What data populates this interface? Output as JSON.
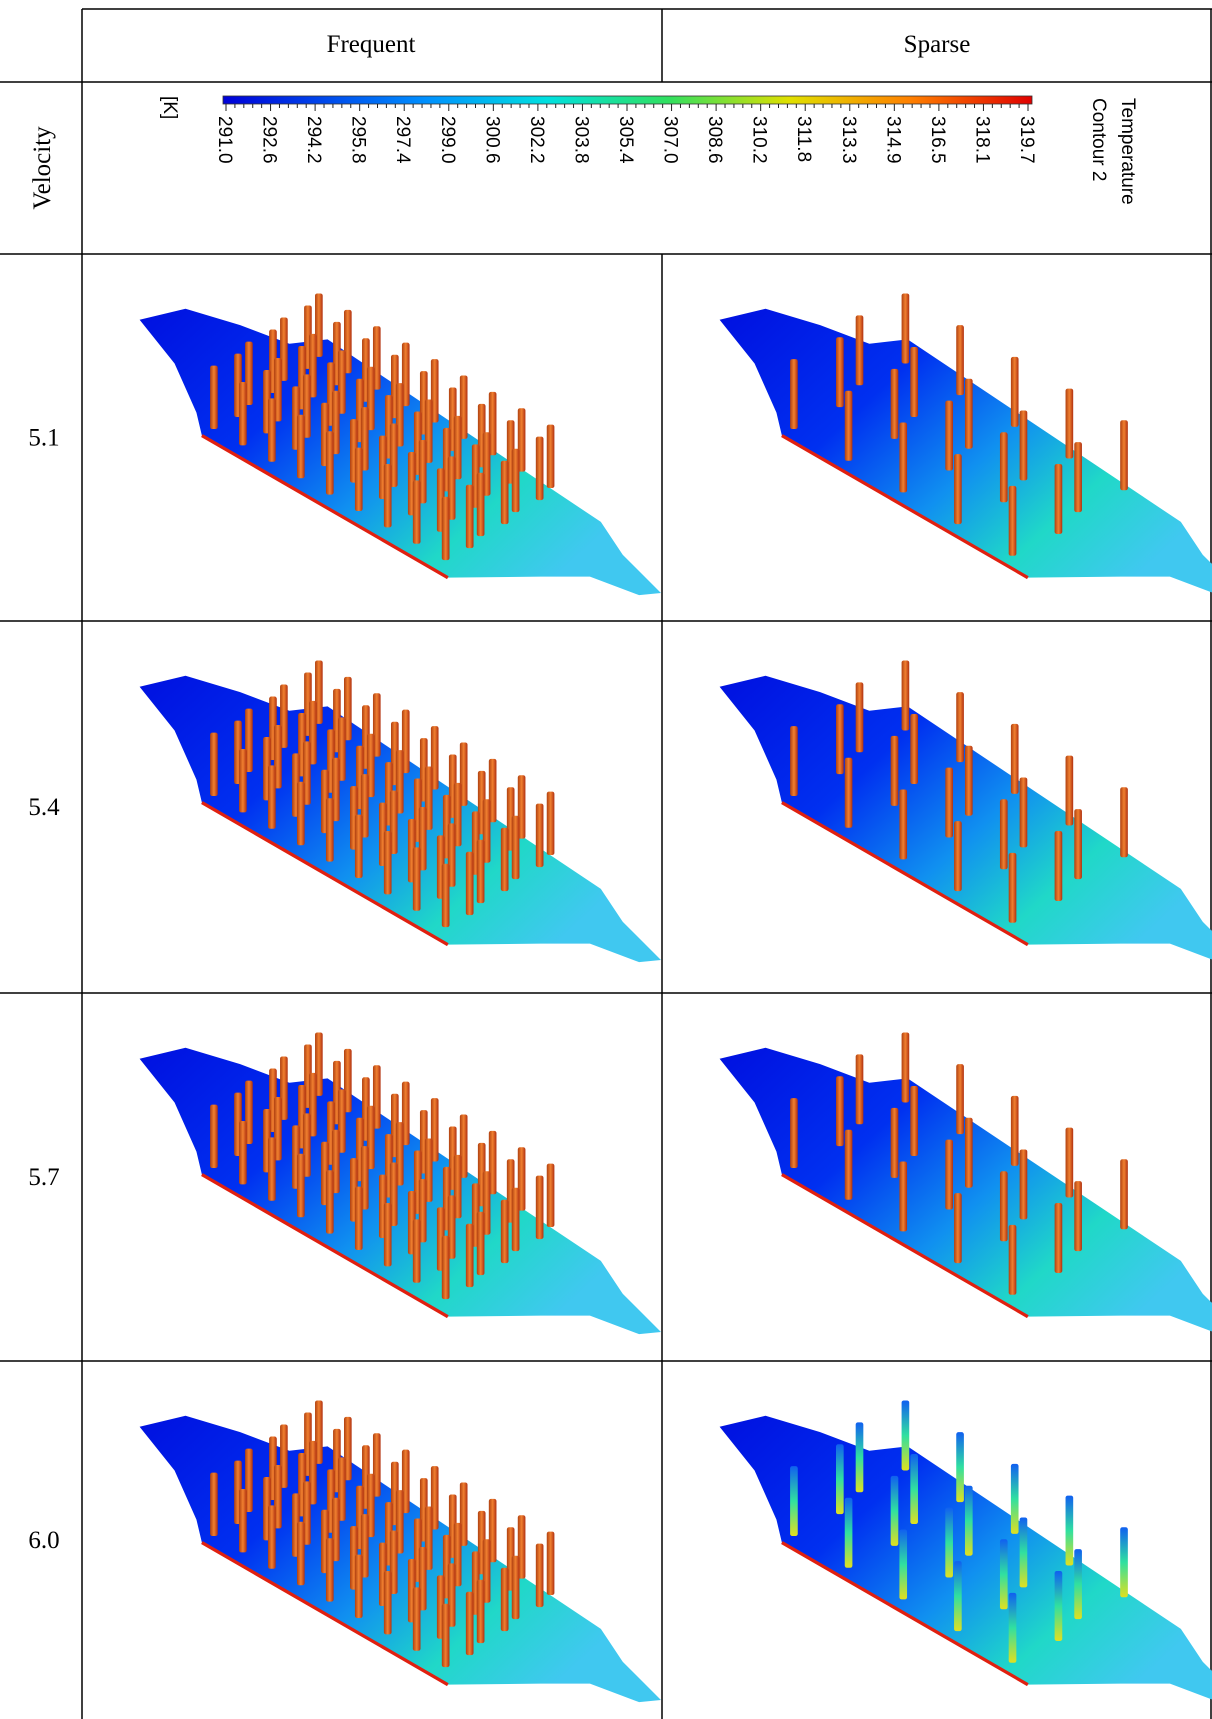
{
  "header": {
    "columns": [
      "Frequent",
      "Sparse"
    ]
  },
  "legend": {
    "row_label": "Velocity",
    "title_lines": [
      "Temperature",
      "Contour 2"
    ],
    "unit": "[K]",
    "ticks": [
      "291.0",
      "292.6",
      "294.2",
      "295.8",
      "297.4",
      "299.0",
      "300.6",
      "302.2",
      "303.8",
      "305.4",
      "307.0",
      "308.6",
      "310.2",
      "311.8",
      "313.3",
      "314.9",
      "316.5",
      "318.1",
      "319.7"
    ]
  },
  "rows": [
    {
      "velocity": "5.1"
    },
    {
      "velocity": "5.4"
    },
    {
      "velocity": "5.7"
    },
    {
      "velocity": "6.0"
    }
  ]
}
